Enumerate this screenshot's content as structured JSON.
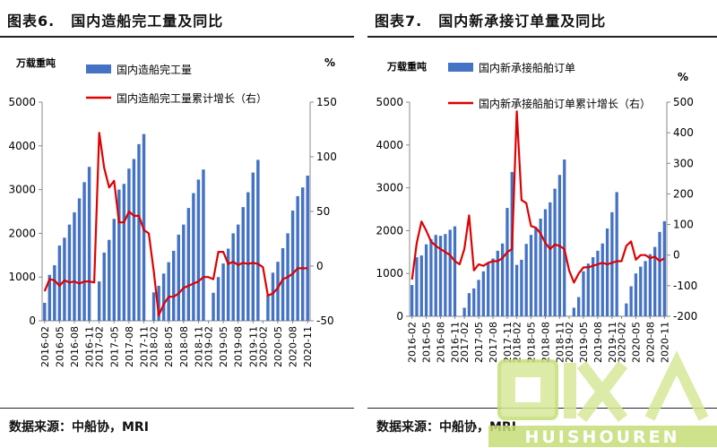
{
  "charts": [
    {
      "title_num": "图表6.",
      "title_text": "国内造船完工量及同比",
      "left_unit": "万载重吨",
      "right_unit": "%",
      "source": "数据来源：中船协，MRI",
      "legend_bar": "国内造船完工量",
      "legend_line": "国内造船完工量累计增长（右）"
    },
    {
      "title_num": "图表7.",
      "title_text": "国内新承接订单量及同比",
      "left_unit": "万载重吨",
      "right_unit": "%",
      "source": "数据来源：中船协，MRI",
      "legend_bar": "国内新承接船舶订单",
      "legend_line": "国内新承接船舶订单累计增长（右）"
    }
  ],
  "colors": {
    "bar": "#4472C4",
    "line": "#E00000"
  },
  "watermark": {
    "icon": "recycle-logo-icon",
    "text": "HUISHOUREN"
  },
  "chart_data": [
    {
      "type": "bar",
      "categories": [
        "2016-02",
        "2016-03",
        "2016-04",
        "2016-05",
        "2016-06",
        "2016-07",
        "2016-08",
        "2016-09",
        "2016-10",
        "2016-11",
        "2016-12",
        "2017-02",
        "2017-03",
        "2017-04",
        "2017-05",
        "2017-06",
        "2017-07",
        "2017-08",
        "2017-09",
        "2017-10",
        "2017-11",
        "2017-12",
        "2018-02",
        "2018-03",
        "2018-04",
        "2018-05",
        "2018-06",
        "2018-07",
        "2018-08",
        "2018-09",
        "2018-10",
        "2018-11",
        "2018-12",
        "2019-02",
        "2019-03",
        "2019-04",
        "2019-05",
        "2019-06",
        "2019-07",
        "2019-08",
        "2019-09",
        "2019-10",
        "2019-11",
        "2019-12",
        "2020-02",
        "2020-03",
        "2020-04",
        "2020-05",
        "2020-06",
        "2020-07",
        "2020-08",
        "2020-09",
        "2020-10",
        "2020-11"
      ],
      "tick_labels": [
        "2016-02",
        "2016-05",
        "2016-08",
        "2016-11",
        "2017-02",
        "2017-05",
        "2017-08",
        "2017-11",
        "2018-02",
        "2018-05",
        "2018-08",
        "2018-11",
        "2019-02",
        "2019-05",
        "2019-08",
        "2019-11",
        "2020-02",
        "2020-05",
        "2020-08",
        "2020-11"
      ],
      "y_left_ticks": [
        0,
        1000,
        2000,
        3000,
        4000,
        5000
      ],
      "y_right_ticks": [
        -50,
        0,
        50,
        100,
        150
      ],
      "ylim_left": [
        0,
        5000
      ],
      "ylim_right": [
        -50,
        150
      ],
      "series": [
        {
          "name": "国内造船完工量",
          "type": "bar",
          "axis": "left",
          "values": [
            410,
            1050,
            1270,
            1720,
            1900,
            2200,
            2480,
            2800,
            3170,
            3520,
            null,
            900,
            1560,
            1850,
            2330,
            3000,
            3130,
            3480,
            3700,
            4040,
            4270,
            null,
            650,
            800,
            1080,
            1340,
            1600,
            1970,
            2200,
            2580,
            2920,
            3230,
            3460,
            null,
            640,
            1000,
            1310,
            1650,
            2000,
            2200,
            2600,
            2940,
            3390,
            3680,
            null,
            590,
            1100,
            1350,
            1660,
            2000,
            2520,
            2850,
            3050,
            3320
          ]
        },
        {
          "name": "国内造船完工量累计增长（右）",
          "type": "line",
          "axis": "right",
          "values": [
            -23,
            -12,
            -13,
            -18,
            -13,
            -15,
            -14,
            -16,
            -14,
            -14,
            -15,
            122,
            90,
            72,
            78,
            40,
            40,
            50,
            46,
            46,
            33,
            30,
            -5,
            -45,
            -35,
            -28,
            -28,
            -25,
            -20,
            -18,
            -16,
            -14,
            -10,
            -10,
            -12,
            13,
            13,
            2,
            4,
            1,
            3,
            2,
            3,
            2,
            -1,
            -27,
            -25,
            -20,
            -12,
            -10,
            -7,
            -2,
            -2,
            -2
          ]
        }
      ]
    },
    {
      "type": "bar",
      "categories": [
        "2016-02",
        "2016-03",
        "2016-04",
        "2016-05",
        "2016-06",
        "2016-07",
        "2016-08",
        "2016-09",
        "2016-10",
        "2016-11",
        "2016-12",
        "2017-02",
        "2017-03",
        "2017-04",
        "2017-05",
        "2017-06",
        "2017-07",
        "2017-08",
        "2017-09",
        "2017-10",
        "2017-11",
        "2017-12",
        "2018-02",
        "2018-03",
        "2018-04",
        "2018-05",
        "2018-06",
        "2018-07",
        "2018-08",
        "2018-09",
        "2018-10",
        "2018-11",
        "2018-12",
        "2019-02",
        "2019-03",
        "2019-04",
        "2019-05",
        "2019-06",
        "2019-07",
        "2019-08",
        "2019-09",
        "2019-10",
        "2019-11",
        "2019-12",
        "2020-02",
        "2020-03",
        "2020-04",
        "2020-05",
        "2020-06",
        "2020-07",
        "2020-08",
        "2020-09",
        "2020-10",
        "2020-11"
      ],
      "tick_labels": [
        "2016-02",
        "2016-05",
        "2016-08",
        "2016-11",
        "2017-02",
        "2017-05",
        "2017-08",
        "2017-11",
        "2018-02",
        "2018-05",
        "2018-08",
        "2018-11",
        "2019-02",
        "2019-05",
        "2019-08",
        "2019-11",
        "2020-02",
        "2020-05",
        "2020-08",
        "2020-11"
      ],
      "y_left_ticks": [
        0,
        1000,
        2000,
        3000,
        4000,
        5000
      ],
      "y_right_ticks": [
        -200,
        -100,
        0,
        100,
        200,
        300,
        400,
        500
      ],
      "ylim_left": [
        0,
        5000
      ],
      "ylim_right": [
        -200,
        500
      ],
      "series": [
        {
          "name": "国内新承接船舶订单",
          "type": "bar",
          "axis": "left",
          "values": [
            730,
            1380,
            1420,
            1680,
            1800,
            1900,
            1880,
            1920,
            2020,
            2100,
            null,
            200,
            540,
            650,
            850,
            1050,
            1240,
            1350,
            1530,
            1700,
            2530,
            3370,
            1200,
            1320,
            1690,
            1900,
            2070,
            2280,
            2500,
            2660,
            2980,
            3300,
            3660,
            null,
            200,
            450,
            1050,
            1230,
            1380,
            1530,
            1700,
            2050,
            2430,
            2900,
            null,
            300,
            700,
            1000,
            1160,
            1290,
            1450,
            1620,
            1970,
            2220
          ]
        },
        {
          "name": "国内新承接船舶订单累计增长（右）",
          "type": "line",
          "axis": "right",
          "values": [
            -80,
            40,
            110,
            80,
            45,
            30,
            20,
            10,
            0,
            -20,
            -30,
            20,
            130,
            -50,
            -30,
            -35,
            -25,
            -20,
            -20,
            -10,
            10,
            20,
            470,
            180,
            170,
            95,
            90,
            70,
            40,
            20,
            35,
            30,
            20,
            -50,
            -90,
            -60,
            -40,
            -40,
            -35,
            -30,
            -25,
            -30,
            -25,
            -20,
            -20,
            30,
            45,
            -15,
            0,
            0,
            -10,
            -5,
            -20,
            -10
          ]
        }
      ]
    }
  ]
}
